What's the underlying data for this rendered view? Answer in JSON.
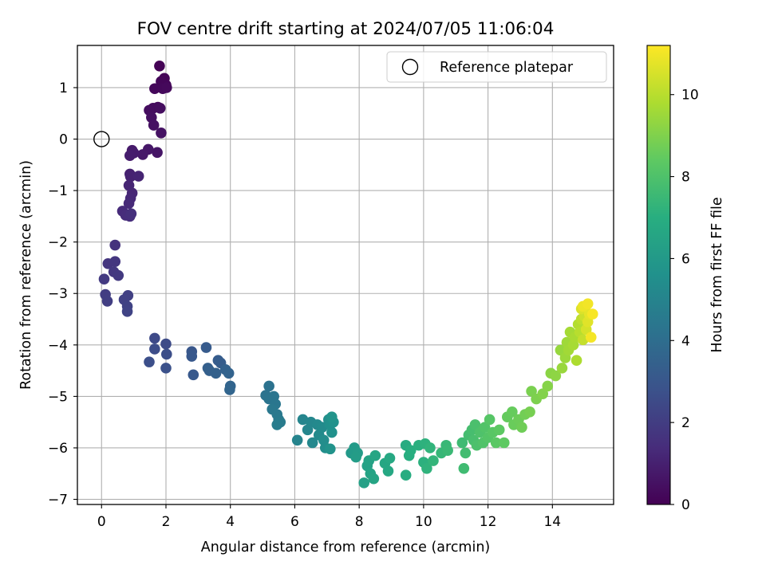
{
  "chart_data": {
    "type": "scatter",
    "title": "FOV centre drift starting at 2024/07/05 11:06:04",
    "xlabel": "Angular distance from reference (arcmin)",
    "ylabel": "Rotation from reference (arcmin)",
    "xlim": [
      -0.75,
      15.9
    ],
    "ylim": [
      -7.1,
      1.82
    ],
    "xticks": [
      0,
      2,
      4,
      6,
      8,
      10,
      12,
      14
    ],
    "yticks": [
      -7,
      -6,
      -5,
      -4,
      -3,
      -2,
      -1,
      0,
      1
    ],
    "grid": true,
    "legend": {
      "placement": "top-right",
      "entries": [
        "Reference platepar"
      ]
    },
    "reference_marker": {
      "x": 0,
      "y": 0,
      "marker": "open-circle"
    },
    "colorbar": {
      "label": "Hours from first FF file",
      "colormap": "viridis",
      "range": [
        0,
        11.2
      ],
      "ticks": [
        0,
        2,
        4,
        6,
        8,
        10
      ]
    },
    "points": [
      {
        "x": 1.8,
        "y": 1.42,
        "h": 0.05
      },
      {
        "x": 1.95,
        "y": 1.18,
        "h": 0.1
      },
      {
        "x": 2.0,
        "y": 1.05,
        "h": 0.12
      },
      {
        "x": 1.85,
        "y": 1.12,
        "h": 0.15
      },
      {
        "x": 1.65,
        "y": 0.98,
        "h": 0.2
      },
      {
        "x": 1.9,
        "y": 0.98,
        "h": 0.22
      },
      {
        "x": 2.02,
        "y": 1.0,
        "h": 0.25
      },
      {
        "x": 1.75,
        "y": 0.62,
        "h": 0.3
      },
      {
        "x": 1.6,
        "y": 0.6,
        "h": 0.35
      },
      {
        "x": 1.48,
        "y": 0.56,
        "h": 0.38
      },
      {
        "x": 1.82,
        "y": 0.6,
        "h": 0.4
      },
      {
        "x": 1.55,
        "y": 0.42,
        "h": 0.45
      },
      {
        "x": 1.62,
        "y": 0.27,
        "h": 0.5
      },
      {
        "x": 1.85,
        "y": 0.12,
        "h": 0.55
      },
      {
        "x": 1.73,
        "y": -0.26,
        "h": 0.65
      },
      {
        "x": 1.45,
        "y": -0.2,
        "h": 0.7
      },
      {
        "x": 1.28,
        "y": -0.3,
        "h": 0.75
      },
      {
        "x": 0.95,
        "y": -0.22,
        "h": 0.8
      },
      {
        "x": 1.0,
        "y": -0.27,
        "h": 0.85
      },
      {
        "x": 0.88,
        "y": -0.32,
        "h": 0.9
      },
      {
        "x": 0.88,
        "y": -0.68,
        "h": 1.0
      },
      {
        "x": 0.9,
        "y": -0.73,
        "h": 1.05
      },
      {
        "x": 1.15,
        "y": -0.72,
        "h": 1.1
      },
      {
        "x": 0.85,
        "y": -0.9,
        "h": 1.15
      },
      {
        "x": 0.95,
        "y": -1.05,
        "h": 1.2
      },
      {
        "x": 0.9,
        "y": -1.15,
        "h": 1.25
      },
      {
        "x": 0.85,
        "y": -1.25,
        "h": 1.3
      },
      {
        "x": 0.65,
        "y": -1.4,
        "h": 1.35
      },
      {
        "x": 0.75,
        "y": -1.48,
        "h": 1.4
      },
      {
        "x": 0.88,
        "y": -1.5,
        "h": 1.45
      },
      {
        "x": 0.92,
        "y": -1.45,
        "h": 1.5
      },
      {
        "x": 0.42,
        "y": -2.06,
        "h": 1.6
      },
      {
        "x": 0.2,
        "y": -2.42,
        "h": 1.7
      },
      {
        "x": 0.42,
        "y": -2.38,
        "h": 1.75
      },
      {
        "x": 0.38,
        "y": -2.58,
        "h": 1.8
      },
      {
        "x": 0.52,
        "y": -2.65,
        "h": 1.85
      },
      {
        "x": 0.08,
        "y": -2.72,
        "h": 1.9
      },
      {
        "x": 0.12,
        "y": -3.02,
        "h": 2.0
      },
      {
        "x": 0.18,
        "y": -3.15,
        "h": 2.05
      },
      {
        "x": 0.82,
        "y": -3.04,
        "h": 2.1
      },
      {
        "x": 0.7,
        "y": -3.12,
        "h": 2.15
      },
      {
        "x": 0.8,
        "y": -3.25,
        "h": 2.2
      },
      {
        "x": 0.8,
        "y": -3.35,
        "h": 2.25
      },
      {
        "x": 1.65,
        "y": -3.87,
        "h": 2.5
      },
      {
        "x": 2.0,
        "y": -3.98,
        "h": 2.55
      },
      {
        "x": 1.65,
        "y": -4.08,
        "h": 2.6
      },
      {
        "x": 2.02,
        "y": -4.18,
        "h": 2.65
      },
      {
        "x": 1.48,
        "y": -4.33,
        "h": 2.7
      },
      {
        "x": 2.0,
        "y": -4.45,
        "h": 2.75
      },
      {
        "x": 2.8,
        "y": -4.13,
        "h": 3.0
      },
      {
        "x": 2.8,
        "y": -4.22,
        "h": 3.05
      },
      {
        "x": 2.85,
        "y": -4.58,
        "h": 3.1
      },
      {
        "x": 3.25,
        "y": -4.05,
        "h": 3.2
      },
      {
        "x": 3.62,
        "y": -4.3,
        "h": 3.25
      },
      {
        "x": 3.7,
        "y": -4.35,
        "h": 3.3
      },
      {
        "x": 3.3,
        "y": -4.45,
        "h": 3.35
      },
      {
        "x": 3.35,
        "y": -4.5,
        "h": 3.4
      },
      {
        "x": 3.55,
        "y": -4.55,
        "h": 3.45
      },
      {
        "x": 3.85,
        "y": -4.48,
        "h": 3.5
      },
      {
        "x": 3.95,
        "y": -4.55,
        "h": 3.55
      },
      {
        "x": 4.0,
        "y": -4.8,
        "h": 3.6
      },
      {
        "x": 3.98,
        "y": -4.87,
        "h": 3.65
      },
      {
        "x": 5.2,
        "y": -4.8,
        "h": 4.2
      },
      {
        "x": 5.1,
        "y": -4.98,
        "h": 4.25
      },
      {
        "x": 5.2,
        "y": -5.05,
        "h": 4.3
      },
      {
        "x": 5.35,
        "y": -5.0,
        "h": 4.35
      },
      {
        "x": 5.4,
        "y": -5.15,
        "h": 4.4
      },
      {
        "x": 5.3,
        "y": -5.25,
        "h": 4.45
      },
      {
        "x": 5.45,
        "y": -5.35,
        "h": 4.5
      },
      {
        "x": 5.5,
        "y": -5.45,
        "h": 4.55
      },
      {
        "x": 5.55,
        "y": -5.5,
        "h": 4.6
      },
      {
        "x": 5.45,
        "y": -5.55,
        "h": 4.65
      },
      {
        "x": 6.08,
        "y": -5.85,
        "h": 5.0
      },
      {
        "x": 6.25,
        "y": -5.45,
        "h": 5.05
      },
      {
        "x": 6.4,
        "y": -5.65,
        "h": 5.1
      },
      {
        "x": 6.5,
        "y": -5.5,
        "h": 5.15
      },
      {
        "x": 6.55,
        "y": -5.9,
        "h": 5.2
      },
      {
        "x": 6.7,
        "y": -5.55,
        "h": 5.25
      },
      {
        "x": 6.75,
        "y": -5.75,
        "h": 5.3
      },
      {
        "x": 6.85,
        "y": -5.6,
        "h": 5.35
      },
      {
        "x": 6.9,
        "y": -5.85,
        "h": 5.4
      },
      {
        "x": 6.95,
        "y": -6.0,
        "h": 5.45
      },
      {
        "x": 7.05,
        "y": -5.45,
        "h": 5.5
      },
      {
        "x": 7.1,
        "y": -5.55,
        "h": 5.55
      },
      {
        "x": 7.15,
        "y": -5.7,
        "h": 5.6
      },
      {
        "x": 7.2,
        "y": -5.5,
        "h": 5.65
      },
      {
        "x": 7.1,
        "y": -6.02,
        "h": 5.7
      },
      {
        "x": 7.15,
        "y": -5.4,
        "h": 5.75
      },
      {
        "x": 7.75,
        "y": -6.1,
        "h": 6.0
      },
      {
        "x": 7.85,
        "y": -6.0,
        "h": 6.05
      },
      {
        "x": 7.95,
        "y": -6.1,
        "h": 6.1
      },
      {
        "x": 7.9,
        "y": -6.18,
        "h": 6.15
      },
      {
        "x": 8.15,
        "y": -6.68,
        "h": 6.3
      },
      {
        "x": 8.25,
        "y": -6.35,
        "h": 6.35
      },
      {
        "x": 8.3,
        "y": -6.25,
        "h": 6.4
      },
      {
        "x": 8.35,
        "y": -6.5,
        "h": 6.45
      },
      {
        "x": 8.45,
        "y": -6.6,
        "h": 6.5
      },
      {
        "x": 8.5,
        "y": -6.15,
        "h": 6.55
      },
      {
        "x": 8.8,
        "y": -6.3,
        "h": 6.6
      },
      {
        "x": 8.9,
        "y": -6.45,
        "h": 6.65
      },
      {
        "x": 8.95,
        "y": -6.2,
        "h": 6.7
      },
      {
        "x": 9.45,
        "y": -5.95,
        "h": 6.85
      },
      {
        "x": 9.45,
        "y": -6.53,
        "h": 6.9
      },
      {
        "x": 9.55,
        "y": -6.15,
        "h": 6.95
      },
      {
        "x": 9.6,
        "y": -6.05,
        "h": 7.0
      },
      {
        "x": 9.85,
        "y": -5.95,
        "h": 7.05
      },
      {
        "x": 10.0,
        "y": -6.28,
        "h": 7.1
      },
      {
        "x": 10.05,
        "y": -5.92,
        "h": 7.15
      },
      {
        "x": 10.1,
        "y": -6.4,
        "h": 7.2
      },
      {
        "x": 10.2,
        "y": -6.0,
        "h": 7.25
      },
      {
        "x": 10.3,
        "y": -6.25,
        "h": 7.3
      },
      {
        "x": 10.55,
        "y": -6.1,
        "h": 7.4
      },
      {
        "x": 10.7,
        "y": -5.95,
        "h": 7.45
      },
      {
        "x": 10.75,
        "y": -6.05,
        "h": 7.5
      },
      {
        "x": 11.2,
        "y": -5.9,
        "h": 7.6
      },
      {
        "x": 11.25,
        "y": -6.4,
        "h": 7.65
      },
      {
        "x": 11.3,
        "y": -6.1,
        "h": 7.7
      },
      {
        "x": 11.4,
        "y": -5.75,
        "h": 7.75
      },
      {
        "x": 11.5,
        "y": -5.65,
        "h": 7.8
      },
      {
        "x": 11.55,
        "y": -5.85,
        "h": 7.85
      },
      {
        "x": 11.6,
        "y": -5.55,
        "h": 7.9
      },
      {
        "x": 11.65,
        "y": -5.95,
        "h": 7.95
      },
      {
        "x": 11.75,
        "y": -5.7,
        "h": 8.0
      },
      {
        "x": 11.85,
        "y": -5.9,
        "h": 8.05
      },
      {
        "x": 11.9,
        "y": -5.6,
        "h": 8.1
      },
      {
        "x": 12.0,
        "y": -5.8,
        "h": 8.15
      },
      {
        "x": 12.05,
        "y": -5.45,
        "h": 8.2
      },
      {
        "x": 12.15,
        "y": -5.7,
        "h": 8.25
      },
      {
        "x": 12.25,
        "y": -5.9,
        "h": 8.3
      },
      {
        "x": 12.35,
        "y": -5.65,
        "h": 8.35
      },
      {
        "x": 12.5,
        "y": -5.9,
        "h": 8.4
      },
      {
        "x": 12.6,
        "y": -5.4,
        "h": 8.5
      },
      {
        "x": 12.75,
        "y": -5.3,
        "h": 8.55
      },
      {
        "x": 12.8,
        "y": -5.55,
        "h": 8.6
      },
      {
        "x": 12.95,
        "y": -5.45,
        "h": 8.65
      },
      {
        "x": 13.05,
        "y": -5.6,
        "h": 8.7
      },
      {
        "x": 13.15,
        "y": -5.35,
        "h": 8.75
      },
      {
        "x": 13.3,
        "y": -5.3,
        "h": 8.85
      },
      {
        "x": 13.35,
        "y": -4.9,
        "h": 8.9
      },
      {
        "x": 13.5,
        "y": -5.05,
        "h": 8.95
      },
      {
        "x": 13.7,
        "y": -4.95,
        "h": 9.05
      },
      {
        "x": 13.85,
        "y": -4.8,
        "h": 9.1
      },
      {
        "x": 13.95,
        "y": -4.55,
        "h": 9.2
      },
      {
        "x": 14.1,
        "y": -4.6,
        "h": 9.25
      },
      {
        "x": 14.25,
        "y": -4.1,
        "h": 9.4
      },
      {
        "x": 14.3,
        "y": -4.45,
        "h": 9.45
      },
      {
        "x": 14.4,
        "y": -4.25,
        "h": 9.5
      },
      {
        "x": 14.45,
        "y": -3.95,
        "h": 9.55
      },
      {
        "x": 14.5,
        "y": -4.1,
        "h": 9.6
      },
      {
        "x": 14.55,
        "y": -3.75,
        "h": 9.65
      },
      {
        "x": 14.65,
        "y": -4.0,
        "h": 9.7
      },
      {
        "x": 14.7,
        "y": -3.85,
        "h": 9.75
      },
      {
        "x": 14.75,
        "y": -4.3,
        "h": 9.8
      },
      {
        "x": 14.8,
        "y": -3.6,
        "h": 9.9
      },
      {
        "x": 14.85,
        "y": -3.75,
        "h": 10.0
      },
      {
        "x": 14.9,
        "y": -3.5,
        "h": 10.1
      },
      {
        "x": 14.95,
        "y": -3.9,
        "h": 10.2
      },
      {
        "x": 15.0,
        "y": -3.45,
        "h": 10.35
      },
      {
        "x": 15.05,
        "y": -3.7,
        "h": 10.5
      },
      {
        "x": 14.9,
        "y": -3.3,
        "h": 10.6
      },
      {
        "x": 15.1,
        "y": -3.55,
        "h": 10.7
      },
      {
        "x": 15.15,
        "y": -3.4,
        "h": 10.8
      },
      {
        "x": 14.95,
        "y": -3.25,
        "h": 10.9
      },
      {
        "x": 15.1,
        "y": -3.2,
        "h": 11.0
      },
      {
        "x": 15.2,
        "y": -3.85,
        "h": 11.05
      },
      {
        "x": 15.25,
        "y": -3.4,
        "h": 11.1
      }
    ]
  }
}
